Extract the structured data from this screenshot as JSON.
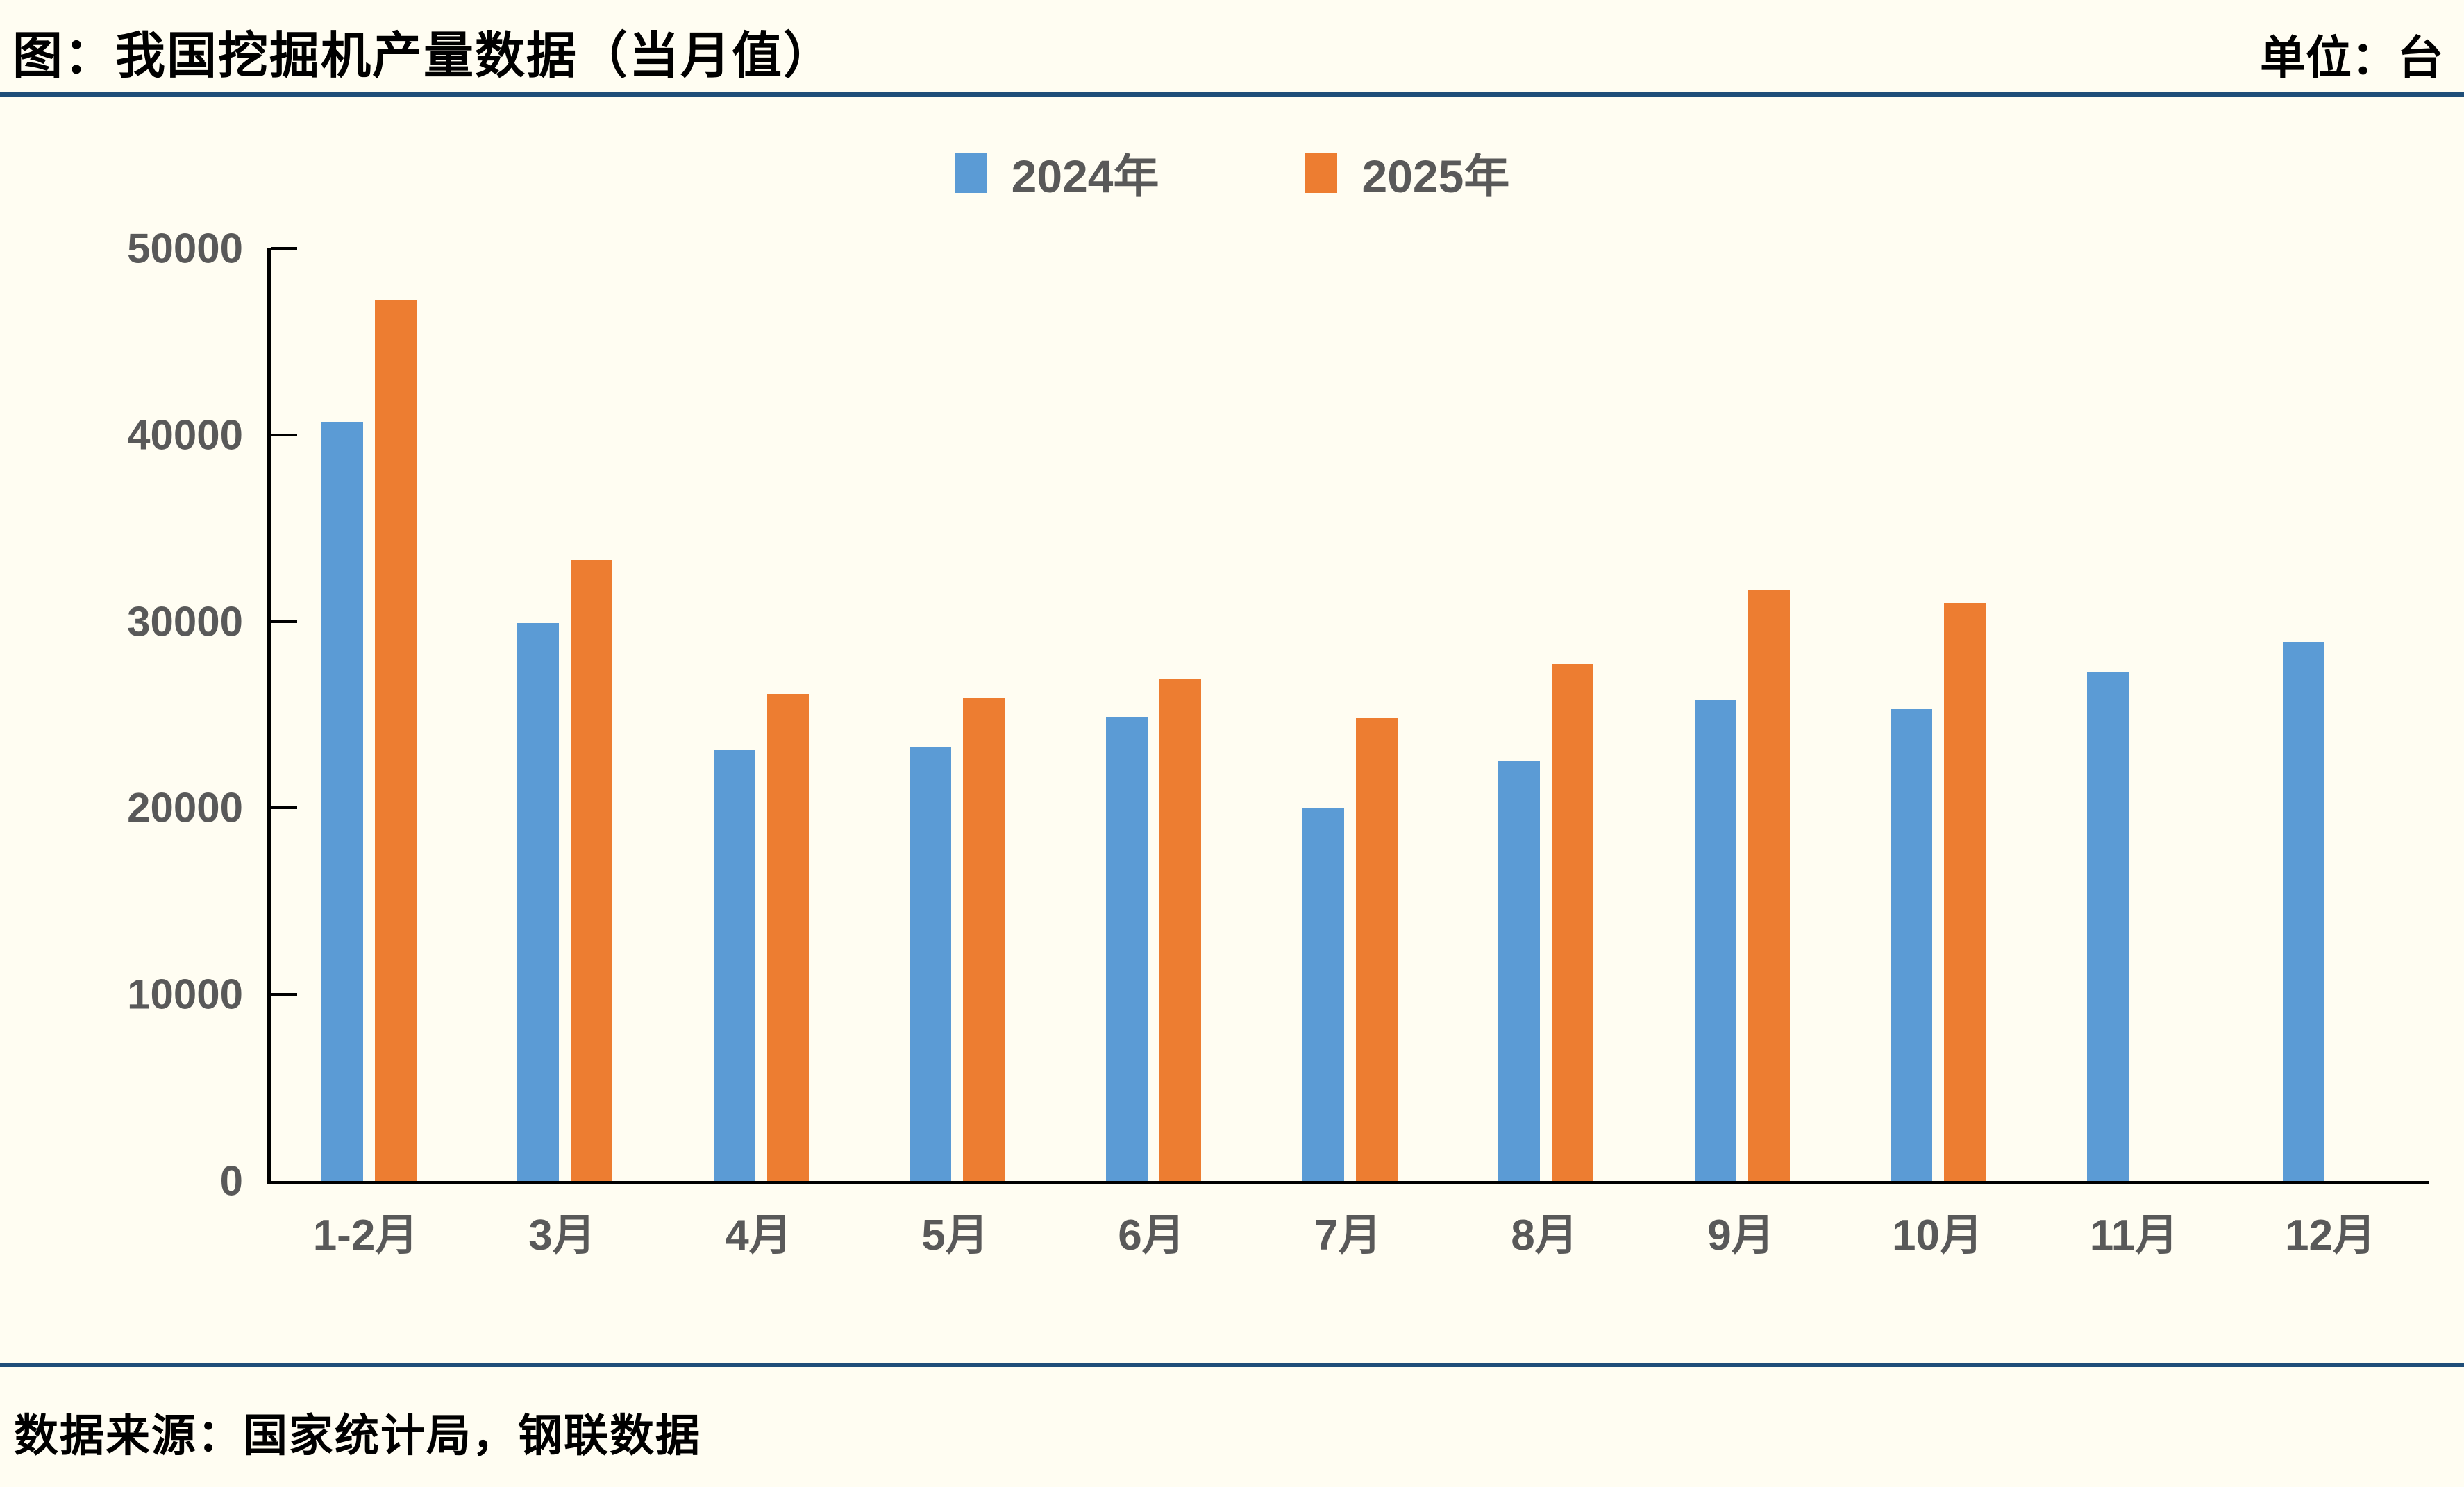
{
  "header": {
    "title": "图：我国挖掘机产量数据（当月值）",
    "unit_label": "单位：台"
  },
  "legend": [
    {
      "label": "2024年",
      "color": "#5b9bd5"
    },
    {
      "label": "2025年",
      "color": "#ed7d31"
    }
  ],
  "footer": {
    "source": "数据来源：国家统计局，钢联数据"
  },
  "colors": {
    "series_2024": "#5b9bd5",
    "series_2025": "#ed7d31",
    "axis_text": "#595959",
    "rule": "#1f4e79",
    "background": "#fffdf2"
  },
  "chart_data": {
    "type": "bar",
    "title": "图：我国挖掘机产量数据（当月值）",
    "unit": "台",
    "categories": [
      "1-2月",
      "3月",
      "4月",
      "5月",
      "6月",
      "7月",
      "8月",
      "9月",
      "10月",
      "11月",
      "12月"
    ],
    "series": [
      {
        "name": "2024年",
        "color": "#5b9bd5",
        "values": [
          40700,
          29900,
          23100,
          23300,
          24900,
          20000,
          22500,
          25800,
          25300,
          27300,
          28900
        ]
      },
      {
        "name": "2025年",
        "color": "#ed7d31",
        "values": [
          47200,
          33300,
          26100,
          25900,
          26900,
          24800,
          27700,
          31700,
          31000,
          null,
          null
        ]
      }
    ],
    "ylim": [
      0,
      50000
    ],
    "y_ticks": [
      0,
      10000,
      20000,
      30000,
      40000,
      50000
    ],
    "grid": false,
    "legend_position": "top-center",
    "source": "数据来源：国家统计局，钢联数据"
  }
}
